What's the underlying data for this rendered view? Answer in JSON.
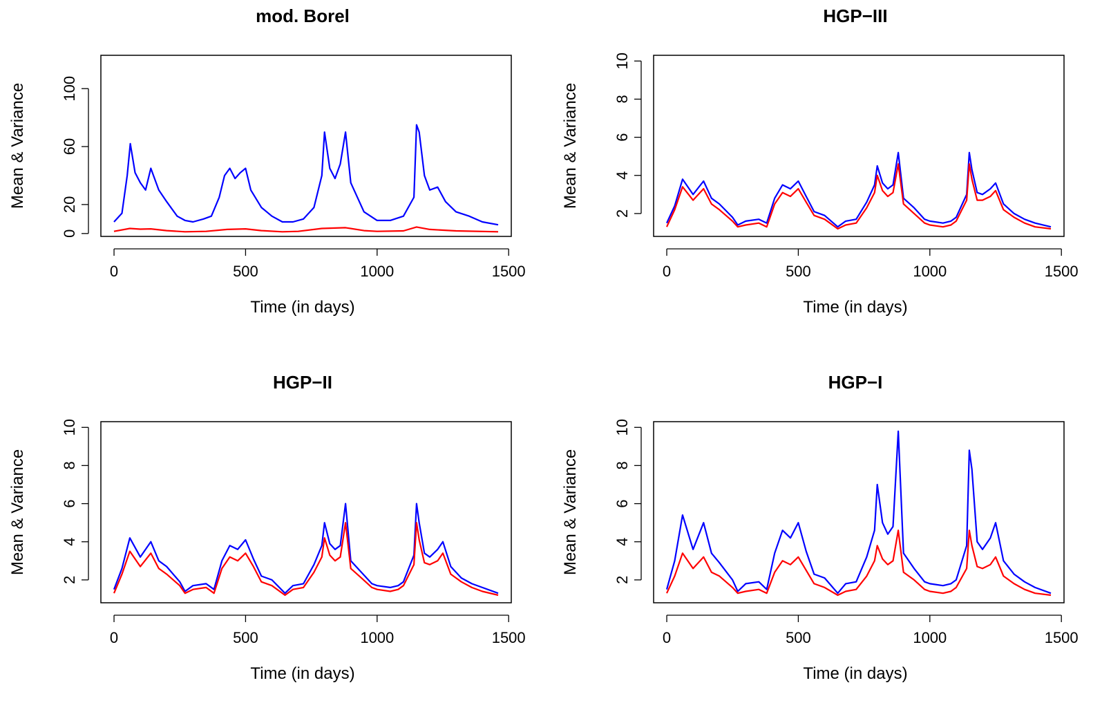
{
  "colors": {
    "mean": "#0000ff",
    "variance": "#ff0000",
    "axis": "#000000"
  },
  "chart_data": [
    {
      "type": "line",
      "title": "mod. Borel",
      "xlabel": "Time (in days)",
      "ylabel": "Mean & Variance",
      "xlim": [
        -50,
        1510
      ],
      "ylim": [
        -2,
        123
      ],
      "xticks": [
        0,
        500,
        1000,
        1500
      ],
      "yticks": [
        0,
        20,
        60,
        100
      ],
      "grid": false,
      "series": [
        {
          "color": "blue",
          "x": [
            0,
            30,
            50,
            62,
            80,
            100,
            120,
            140,
            170,
            200,
            240,
            270,
            300,
            340,
            370,
            400,
            420,
            440,
            460,
            480,
            500,
            520,
            560,
            600,
            640,
            680,
            720,
            760,
            790,
            800,
            820,
            840,
            860,
            880,
            900,
            950,
            1000,
            1050,
            1100,
            1140,
            1150,
            1160,
            1180,
            1200,
            1230,
            1260,
            1300,
            1350,
            1400,
            1460
          ],
          "values": [
            8,
            14,
            40,
            62,
            42,
            35,
            30,
            45,
            30,
            22,
            12,
            9,
            8,
            10,
            12,
            25,
            40,
            45,
            38,
            42,
            45,
            30,
            18,
            12,
            8,
            8,
            10,
            18,
            40,
            70,
            45,
            38,
            48,
            70,
            35,
            15,
            9,
            9,
            12,
            25,
            75,
            70,
            40,
            30,
            32,
            22,
            15,
            12,
            8,
            6
          ]
        },
        {
          "color": "red",
          "x": [
            0,
            60,
            100,
            140,
            200,
            270,
            350,
            430,
            500,
            560,
            640,
            700,
            790,
            880,
            950,
            1000,
            1100,
            1150,
            1200,
            1300,
            1460
          ],
          "values": [
            1.5,
            3.5,
            3,
            3.2,
            2,
            1.2,
            1.5,
            2.8,
            3.2,
            2,
            1.2,
            1.5,
            3.5,
            4,
            2,
            1.5,
            1.8,
            4.5,
            2.8,
            1.8,
            1.2
          ]
        }
      ]
    },
    {
      "type": "line",
      "title": "HGP−III",
      "xlabel": "Time (in days)",
      "ylabel": "Mean & Variance",
      "xlim": [
        -50,
        1510
      ],
      "ylim": [
        0.8,
        10.3
      ],
      "xticks": [
        0,
        500,
        1000,
        1500
      ],
      "yticks": [
        2,
        4,
        6,
        8,
        10
      ],
      "grid": false,
      "series": [
        {
          "color": "blue",
          "x": [
            0,
            30,
            60,
            100,
            140,
            170,
            200,
            250,
            270,
            300,
            350,
            380,
            410,
            440,
            470,
            500,
            530,
            560,
            600,
            650,
            680,
            720,
            760,
            790,
            800,
            820,
            840,
            860,
            880,
            900,
            940,
            980,
            1000,
            1050,
            1080,
            1100,
            1140,
            1150,
            1160,
            1180,
            1200,
            1230,
            1250,
            1280,
            1320,
            1360,
            1400,
            1460
          ],
          "values": [
            1.5,
            2.4,
            3.8,
            3.0,
            3.7,
            2.8,
            2.5,
            1.8,
            1.4,
            1.6,
            1.7,
            1.5,
            2.8,
            3.5,
            3.3,
            3.7,
            2.9,
            2.1,
            1.9,
            1.3,
            1.6,
            1.7,
            2.6,
            3.5,
            4.5,
            3.6,
            3.3,
            3.5,
            5.2,
            2.8,
            2.3,
            1.7,
            1.6,
            1.5,
            1.6,
            1.8,
            3.0,
            5.2,
            4.3,
            3.1,
            3.0,
            3.3,
            3.6,
            2.5,
            2.0,
            1.7,
            1.5,
            1.3
          ]
        },
        {
          "color": "red",
          "x": [
            0,
            30,
            60,
            100,
            140,
            170,
            200,
            250,
            270,
            300,
            350,
            380,
            410,
            440,
            470,
            500,
            530,
            560,
            600,
            650,
            680,
            720,
            760,
            790,
            800,
            820,
            840,
            860,
            880,
            900,
            940,
            980,
            1000,
            1050,
            1080,
            1100,
            1140,
            1150,
            1160,
            1180,
            1200,
            1230,
            1250,
            1280,
            1320,
            1360,
            1400,
            1460
          ],
          "values": [
            1.3,
            2.2,
            3.4,
            2.7,
            3.3,
            2.5,
            2.2,
            1.6,
            1.3,
            1.4,
            1.5,
            1.3,
            2.5,
            3.1,
            2.9,
            3.3,
            2.6,
            1.9,
            1.7,
            1.2,
            1.4,
            1.5,
            2.3,
            3.1,
            4.0,
            3.2,
            2.9,
            3.1,
            4.6,
            2.5,
            2.0,
            1.5,
            1.4,
            1.3,
            1.4,
            1.6,
            2.7,
            4.6,
            3.8,
            2.7,
            2.7,
            2.9,
            3.2,
            2.2,
            1.8,
            1.5,
            1.3,
            1.2
          ]
        }
      ]
    },
    {
      "type": "line",
      "title": "HGP−II",
      "xlabel": "Time (in days)",
      "ylabel": "Mean & Variance",
      "xlim": [
        -50,
        1510
      ],
      "ylim": [
        0.8,
        10.3
      ],
      "xticks": [
        0,
        500,
        1000,
        1500
      ],
      "yticks": [
        2,
        4,
        6,
        8,
        10
      ],
      "grid": false,
      "series": [
        {
          "color": "blue",
          "x": [
            0,
            30,
            60,
            100,
            140,
            170,
            200,
            250,
            270,
            300,
            350,
            380,
            410,
            440,
            470,
            500,
            530,
            560,
            600,
            650,
            680,
            720,
            760,
            790,
            800,
            820,
            840,
            860,
            880,
            900,
            940,
            980,
            1000,
            1050,
            1080,
            1100,
            1140,
            1150,
            1160,
            1180,
            1200,
            1230,
            1250,
            1280,
            1320,
            1360,
            1400,
            1460
          ],
          "values": [
            1.5,
            2.6,
            4.2,
            3.2,
            4.0,
            3.0,
            2.7,
            1.9,
            1.4,
            1.7,
            1.8,
            1.5,
            3.0,
            3.8,
            3.6,
            4.1,
            3.1,
            2.2,
            2.0,
            1.3,
            1.7,
            1.8,
            2.8,
            3.8,
            5.0,
            3.9,
            3.6,
            3.8,
            6.0,
            3.0,
            2.4,
            1.8,
            1.7,
            1.6,
            1.7,
            1.9,
            3.3,
            6.0,
            5.0,
            3.4,
            3.2,
            3.6,
            4.0,
            2.7,
            2.1,
            1.8,
            1.6,
            1.3
          ]
        },
        {
          "color": "red",
          "x": [
            0,
            30,
            60,
            100,
            140,
            170,
            200,
            250,
            270,
            300,
            350,
            380,
            410,
            440,
            470,
            500,
            530,
            560,
            600,
            650,
            680,
            720,
            760,
            790,
            800,
            820,
            840,
            860,
            880,
            900,
            940,
            980,
            1000,
            1050,
            1080,
            1100,
            1140,
            1150,
            1160,
            1180,
            1200,
            1230,
            1250,
            1280,
            1320,
            1360,
            1400,
            1460
          ],
          "values": [
            1.3,
            2.3,
            3.5,
            2.7,
            3.4,
            2.6,
            2.3,
            1.7,
            1.3,
            1.5,
            1.6,
            1.3,
            2.6,
            3.2,
            3.0,
            3.4,
            2.7,
            1.9,
            1.7,
            1.2,
            1.5,
            1.6,
            2.4,
            3.2,
            4.2,
            3.3,
            3.0,
            3.2,
            5.0,
            2.6,
            2.1,
            1.6,
            1.5,
            1.4,
            1.5,
            1.7,
            2.8,
            5.0,
            4.1,
            2.9,
            2.8,
            3.0,
            3.4,
            2.3,
            1.9,
            1.6,
            1.4,
            1.2
          ]
        }
      ]
    },
    {
      "type": "line",
      "title": "HGP−I",
      "xlabel": "Time (in days)",
      "ylabel": "Mean & Variance",
      "xlim": [
        -50,
        1510
      ],
      "ylim": [
        0.8,
        10.3
      ],
      "xticks": [
        0,
        500,
        1000,
        1500
      ],
      "yticks": [
        2,
        4,
        6,
        8,
        10
      ],
      "grid": false,
      "series": [
        {
          "color": "blue",
          "x": [
            0,
            30,
            60,
            100,
            140,
            170,
            200,
            250,
            270,
            300,
            350,
            380,
            410,
            440,
            470,
            500,
            530,
            560,
            600,
            650,
            680,
            720,
            760,
            790,
            800,
            820,
            840,
            860,
            880,
            900,
            940,
            980,
            1000,
            1050,
            1080,
            1100,
            1140,
            1150,
            1160,
            1180,
            1200,
            1230,
            1250,
            1280,
            1320,
            1360,
            1400,
            1460
          ],
          "values": [
            1.5,
            3.0,
            5.4,
            3.6,
            5.0,
            3.4,
            2.9,
            2.0,
            1.4,
            1.8,
            1.9,
            1.5,
            3.4,
            4.6,
            4.2,
            5.0,
            3.5,
            2.3,
            2.1,
            1.3,
            1.8,
            1.9,
            3.2,
            4.6,
            7.0,
            5.0,
            4.4,
            4.8,
            9.8,
            3.4,
            2.6,
            1.9,
            1.8,
            1.7,
            1.8,
            2.0,
            3.8,
            8.8,
            7.8,
            4.0,
            3.6,
            4.2,
            5.0,
            3.0,
            2.3,
            1.9,
            1.6,
            1.3
          ]
        },
        {
          "color": "red",
          "x": [
            0,
            30,
            60,
            100,
            140,
            170,
            200,
            250,
            270,
            300,
            350,
            380,
            410,
            440,
            470,
            500,
            530,
            560,
            600,
            650,
            680,
            720,
            760,
            790,
            800,
            820,
            840,
            860,
            880,
            900,
            940,
            980,
            1000,
            1050,
            1080,
            1100,
            1140,
            1150,
            1160,
            1180,
            1200,
            1230,
            1250,
            1280,
            1320,
            1360,
            1400,
            1460
          ],
          "values": [
            1.3,
            2.2,
            3.4,
            2.6,
            3.2,
            2.4,
            2.2,
            1.6,
            1.3,
            1.4,
            1.5,
            1.3,
            2.4,
            3.0,
            2.8,
            3.2,
            2.5,
            1.8,
            1.6,
            1.2,
            1.4,
            1.5,
            2.2,
            3.0,
            3.8,
            3.1,
            2.8,
            3.0,
            4.6,
            2.4,
            2.0,
            1.5,
            1.4,
            1.3,
            1.4,
            1.6,
            2.6,
            4.6,
            3.8,
            2.7,
            2.6,
            2.8,
            3.2,
            2.2,
            1.8,
            1.5,
            1.3,
            1.2
          ]
        }
      ]
    }
  ]
}
